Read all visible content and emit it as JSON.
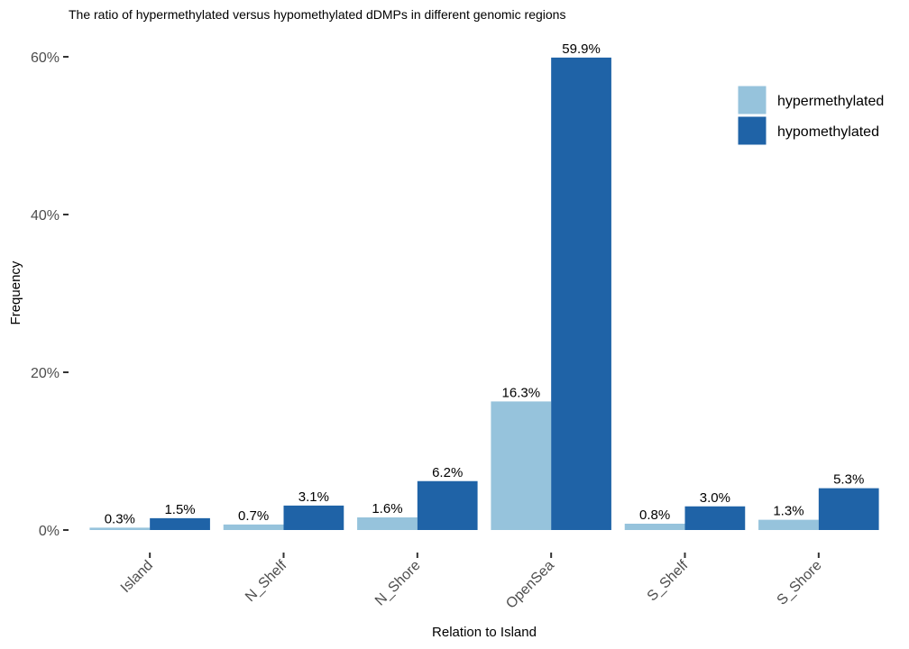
{
  "chart_data": {
    "type": "bar",
    "title": "The ratio of hypermethylated versus hypomethylated dDMPs in different genomic regions",
    "xlabel": "Relation to Island",
    "ylabel": "Frequency",
    "ylim": [
      0,
      62
    ],
    "yticks": [
      0,
      20,
      40,
      60
    ],
    "ytick_labels": [
      "0%",
      "20%",
      "40%",
      "60%"
    ],
    "categories": [
      "Island",
      "N_Shelf",
      "N_Shore",
      "OpenSea",
      "S_Shelf",
      "S_Shore"
    ],
    "series": [
      {
        "name": "hypermethylated",
        "color": "#96c3dc",
        "values": [
          0.3,
          0.7,
          1.6,
          16.3,
          0.8,
          1.3
        ],
        "labels": [
          "0.3%",
          "0.7%",
          "1.6%",
          "16.3%",
          "0.8%",
          "1.3%"
        ]
      },
      {
        "name": "hypomethylated",
        "color": "#1f63a7",
        "values": [
          1.5,
          3.1,
          6.2,
          59.9,
          3.0,
          5.3
        ],
        "labels": [
          "1.5%",
          "3.1%",
          "6.2%",
          "59.9%",
          "3.0%",
          "5.3%"
        ]
      }
    ],
    "grid": false,
    "legend_position": "top-right",
    "x_tick_rotation": "45 degrees"
  }
}
